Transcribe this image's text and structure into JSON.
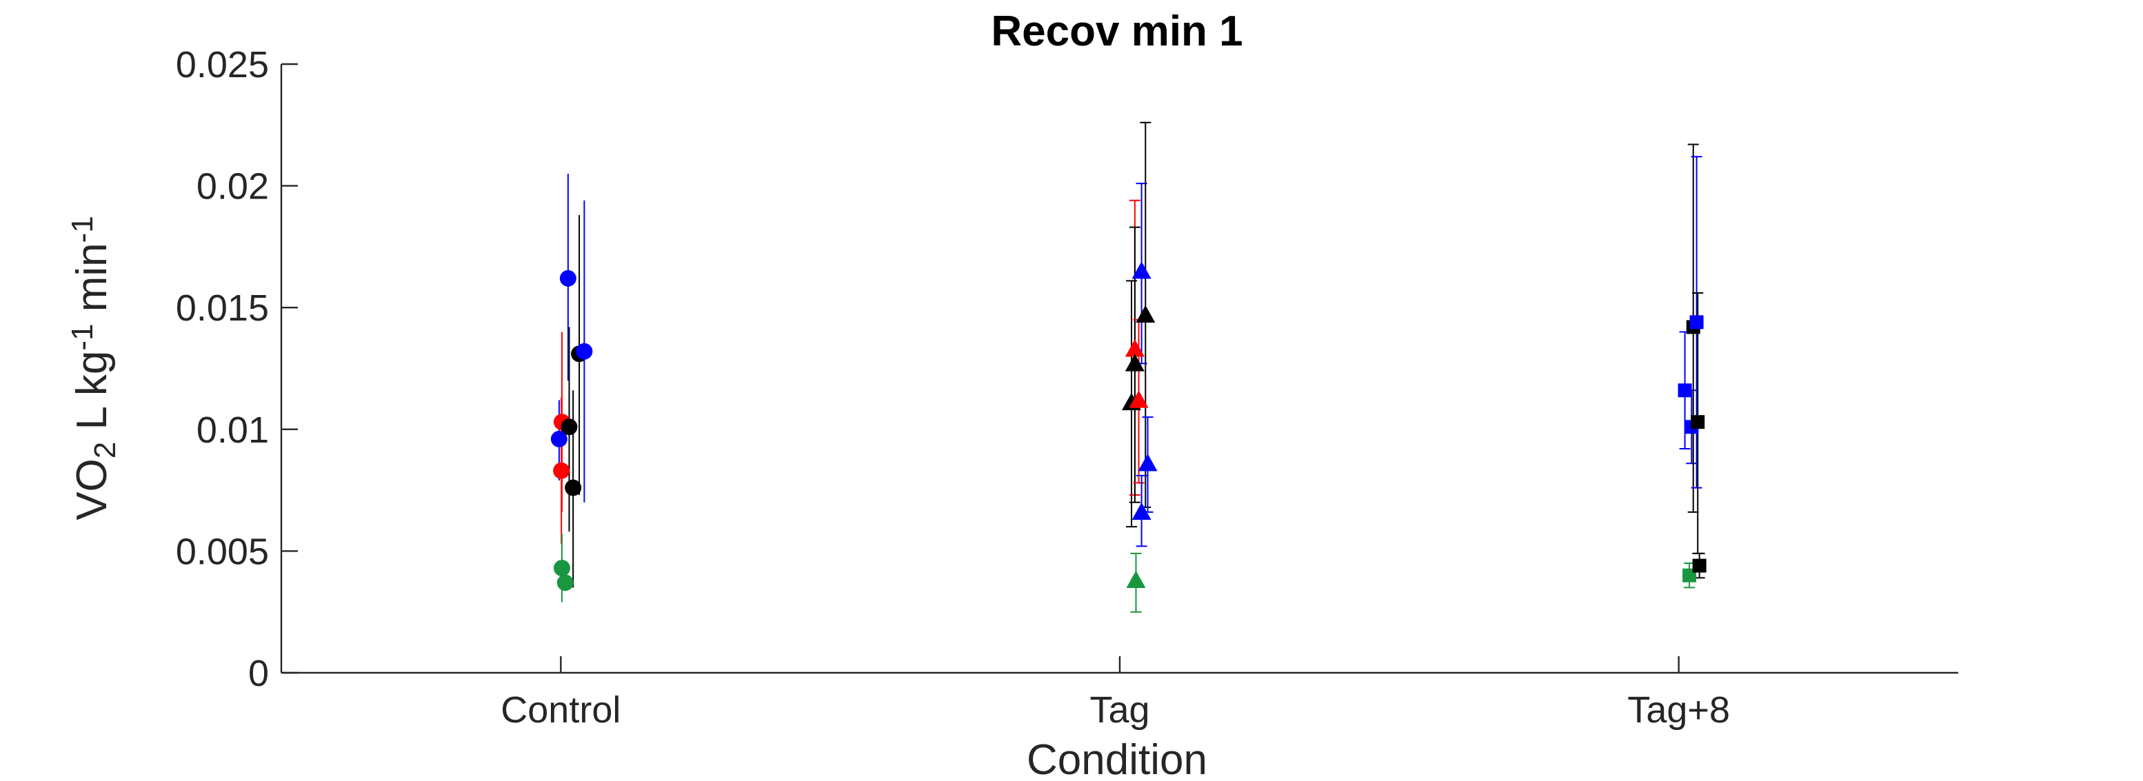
{
  "chart_data": {
    "type": "scatter",
    "title": "Recov min 1",
    "xlabel": "Condition",
    "ylabel": {
      "parts": [
        {
          "text": "VO",
          "shift": "none"
        },
        {
          "text": "2",
          "shift": "sub"
        },
        {
          "text": " L kg",
          "shift": "none"
        },
        {
          "text": "-1",
          "shift": "super"
        },
        {
          "text": " min",
          "shift": "none"
        },
        {
          "text": "-1",
          "shift": "super"
        }
      ]
    },
    "categories": [
      "Control",
      "Tag",
      "Tag+8"
    ],
    "ylim": [
      0,
      0.025
    ],
    "yticks": [
      0,
      0.005,
      0.01,
      0.015,
      0.02,
      0.025
    ],
    "ytick_labels": [
      "0",
      "0.005",
      "0.01",
      "0.015",
      "0.02",
      "0.025"
    ],
    "grid": false,
    "legend": "none",
    "colors": {
      "blue": "#0000ff",
      "red": "#ff0000",
      "black": "#000000",
      "green": "#1a9641"
    },
    "markers": {
      "Control": "circle",
      "Tag": "triangle",
      "Tag+8": "square"
    },
    "points": [
      {
        "category": "Control",
        "offset": -0.003,
        "y": 0.0096,
        "yerr_low": 0.0079,
        "yerr_high": 0.0112,
        "color": "blue"
      },
      {
        "category": "Control",
        "offset": 0.001,
        "y": 0.0083,
        "yerr_low": 0.0053,
        "yerr_high": 0.0113,
        "color": "red"
      },
      {
        "category": "Control",
        "offset": 0.002,
        "y": 0.0103,
        "yerr_low": 0.0066,
        "yerr_high": 0.014,
        "color": "red"
      },
      {
        "category": "Control",
        "offset": 0.002,
        "y": 0.0043,
        "yerr_low": 0.0029,
        "yerr_high": 0.0057,
        "color": "green"
      },
      {
        "category": "Control",
        "offset": 0.008,
        "y": 0.0037,
        "yerr_low": 0.0034,
        "yerr_high": 0.004,
        "color": "green"
      },
      {
        "category": "Control",
        "offset": 0.013,
        "y": 0.0162,
        "yerr_low": 0.012,
        "yerr_high": 0.0205,
        "color": "blue"
      },
      {
        "category": "Control",
        "offset": 0.015,
        "y": 0.0101,
        "yerr_low": 0.0058,
        "yerr_high": 0.0142,
        "color": "black"
      },
      {
        "category": "Control",
        "offset": 0.022,
        "y": 0.0076,
        "yerr_low": 0.0035,
        "yerr_high": 0.0116,
        "color": "black"
      },
      {
        "category": "Control",
        "offset": 0.033,
        "y": 0.0131,
        "yerr_low": 0.0073,
        "yerr_high": 0.0188,
        "color": "black"
      },
      {
        "category": "Control",
        "offset": 0.042,
        "y": 0.0132,
        "yerr_low": 0.007,
        "yerr_high": 0.0194,
        "color": "blue"
      },
      {
        "category": "Tag",
        "offset": 0.021,
        "y": 0.0111,
        "yerr_low": 0.006,
        "yerr_high": 0.0161,
        "color": "black"
      },
      {
        "category": "Tag",
        "offset": 0.027,
        "y": 0.0133,
        "yerr_low": 0.0073,
        "yerr_high": 0.0194,
        "color": "red"
      },
      {
        "category": "Tag",
        "offset": 0.027,
        "y": 0.0127,
        "yerr_low": 0.007,
        "yerr_high": 0.0183,
        "color": "black"
      },
      {
        "category": "Tag",
        "offset": 0.029,
        "y": 0.0038,
        "yerr_low": 0.0025,
        "yerr_high": 0.0049,
        "color": "green"
      },
      {
        "category": "Tag",
        "offset": 0.034,
        "y": 0.0112,
        "yerr_low": 0.0078,
        "yerr_high": 0.0145,
        "color": "red"
      },
      {
        "category": "Tag",
        "offset": 0.039,
        "y": 0.0165,
        "yerr_low": 0.0127,
        "yerr_high": 0.0201,
        "color": "blue"
      },
      {
        "category": "Tag",
        "offset": 0.039,
        "y": 0.0066,
        "yerr_low": 0.0052,
        "yerr_high": 0.0081,
        "color": "blue"
      },
      {
        "category": "Tag",
        "offset": 0.046,
        "y": 0.0147,
        "yerr_low": 0.0068,
        "yerr_high": 0.0226,
        "color": "black"
      },
      {
        "category": "Tag",
        "offset": 0.05,
        "y": 0.0086,
        "yerr_low": 0.0066,
        "yerr_high": 0.0105,
        "color": "blue"
      },
      {
        "category": "Tag+8",
        "offset": 0.011,
        "y": 0.0116,
        "yerr_low": 0.0092,
        "yerr_high": 0.014,
        "color": "blue"
      },
      {
        "category": "Tag+8",
        "offset": 0.019,
        "y": 0.004,
        "yerr_low": 0.0035,
        "yerr_high": 0.0045,
        "color": "green"
      },
      {
        "category": "Tag+8",
        "offset": 0.023,
        "y": 0.0101,
        "yerr_low": 0.0086,
        "yerr_high": 0.0116,
        "color": "blue"
      },
      {
        "category": "Tag+8",
        "offset": 0.026,
        "y": 0.0142,
        "yerr_low": 0.0066,
        "yerr_high": 0.0217,
        "color": "black"
      },
      {
        "category": "Tag+8",
        "offset": 0.032,
        "y": 0.0144,
        "yerr_low": 0.0076,
        "yerr_high": 0.0212,
        "color": "blue"
      },
      {
        "category": "Tag+8",
        "offset": 0.034,
        "y": 0.0103,
        "yerr_low": 0.0049,
        "yerr_high": 0.0156,
        "color": "black"
      },
      {
        "category": "Tag+8",
        "offset": 0.037,
        "y": 0.0044,
        "yerr_low": 0.0039,
        "yerr_high": 0.0049,
        "color": "black"
      }
    ]
  }
}
